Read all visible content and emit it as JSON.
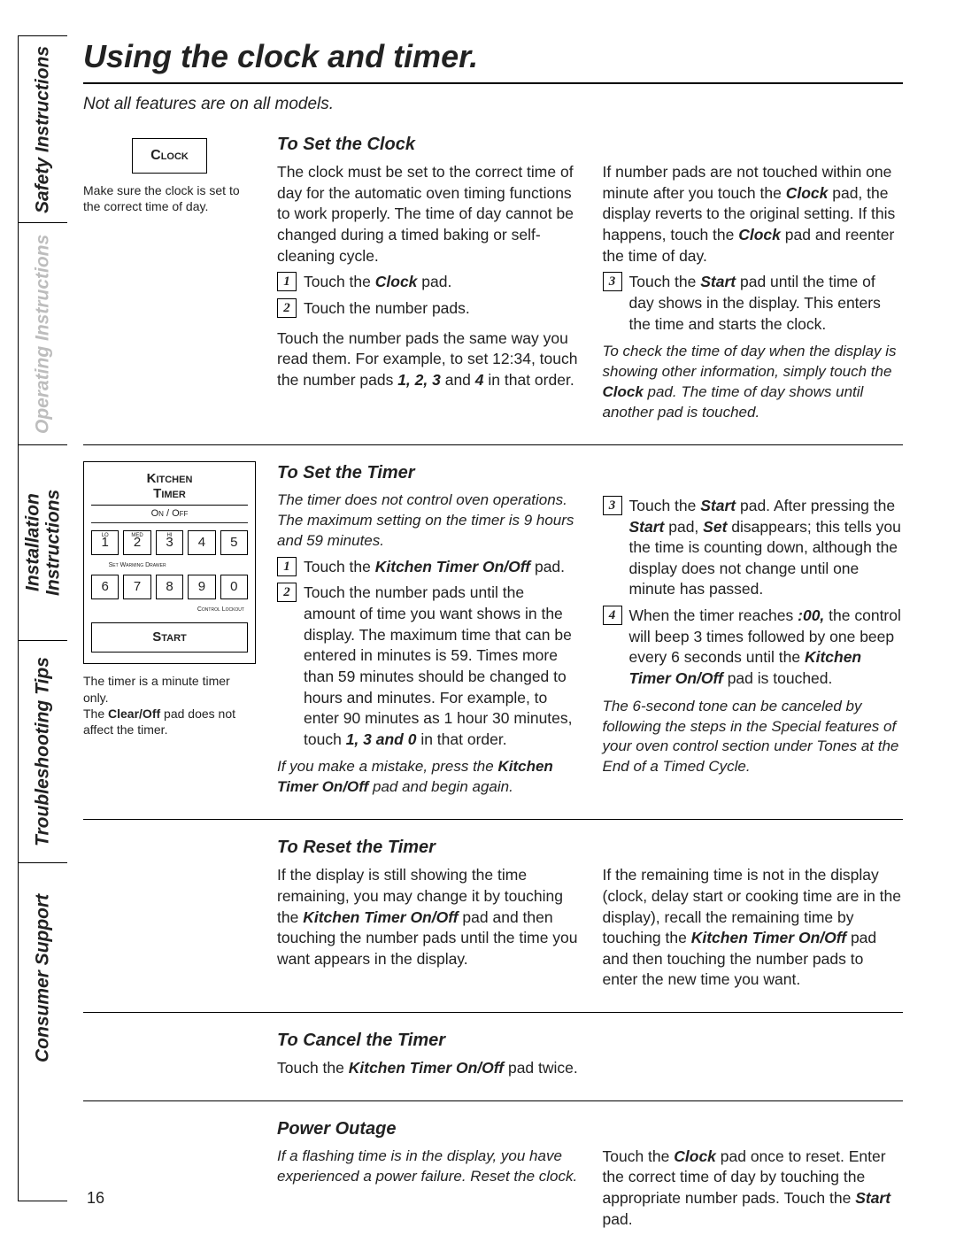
{
  "tabs": {
    "safety": "Safety Instructions",
    "operating": "Operating Instructions",
    "install_line1": "Installation",
    "install_line2": "Instructions",
    "trouble": "Troubleshooting Tips",
    "consumer": "Consumer Support"
  },
  "title": "Using the clock and timer.",
  "subtitle": "Not all features are on all models.",
  "page_number": "16",
  "clock": {
    "btn": "Clock",
    "caption": "Make sure the clock is set to the correct time of day.",
    "heading": "To Set the Clock",
    "intro": "The clock must be set to the correct time of day for the automatic oven timing functions to work properly. The time of day cannot be changed during a timed baking or self-cleaning cycle.",
    "step1": "Touch the <b><i>Clock</i></b> pad.",
    "step2": "Touch the number pads.",
    "para2": "Touch the number pads the same way you read them. For example, to set 12:34, touch the number pads <b><i>1, 2, 3</i></b> and <b><i>4</i></b> in that order.",
    "right_intro": "If number pads are not touched within one minute after you touch the <b><i>Clock</i></b> pad, the display reverts to the original setting. If this happens, touch the <b><i>Clock</i></b> pad and reenter the time of day.",
    "step3": "Touch the <b><i>Start</i></b> pad until the time of day shows in the display. This enters the time and starts the clock.",
    "right_note": "To check the time of day when the display is showing other information, simply touch the <b><i>Clock</i></b> pad. The time of day shows until another pad is touched."
  },
  "keypad": {
    "title": "Kitchen<br>Timer",
    "sub": "On / Off",
    "keys_row1": [
      "1",
      "2",
      "3",
      "4",
      "5"
    ],
    "keys_row1_sup": [
      "LO",
      "MED",
      "HI",
      "",
      ""
    ],
    "keys_row2": [
      "6",
      "7",
      "8",
      "9",
      "0"
    ],
    "foot1": "Set Warming Drawer",
    "foot2": "Control Lockout",
    "start": "Start",
    "caption": "The timer is a minute timer only.<br>The <b>Clear/Off</b> pad does not affect the timer."
  },
  "timer": {
    "heading": "To Set the Timer",
    "intro": "The timer does not control oven operations. The maximum setting on the timer is 9 hours and 59 minutes.",
    "step1": "Touch the <b><i>Kitchen Timer On/Off</i></b> pad.",
    "step2": "Touch the number pads until the amount of time you want shows in the display. The maximum time that can be entered in minutes is 59. Times more than 59 minutes should be changed to hours and minutes. For example, to enter 90 minutes as 1 hour 30 minutes, touch <b><i>1, 3 and 0</i></b> in that order.",
    "mistake": "If you make a mistake, press the <b><i>Kitchen Timer On/Off</i></b> pad and begin again.",
    "step3": "Touch the <b><i>Start</i></b> pad. After pressing the <b><i>Start</i></b> pad, <b><i>Set</i></b> disappears; this tells you the time is counting down, although the display does not change until one minute has passed.",
    "step4": "When the timer reaches <b><i>:00,</i></b> the control will beep 3 times followed by one beep every 6 seconds until the <b><i>Kitchen Timer On/Off</i></b> pad is touched.",
    "right_note": "The 6-second tone can be canceled by following the steps in the Special features of your oven control section under Tones at the End of a Timed Cycle."
  },
  "reset": {
    "heading": "To Reset the Timer",
    "left": "If the display is still showing the time remaining, you may change it by touching the <b><i>Kitchen Timer On/Off</i></b> pad and then touching the number pads until the time you want appears in the display.",
    "right": "If the remaining time is not in the display (clock, delay start or cooking time are in the display), recall the remaining time by touching the <b><i>Kitchen Timer On/Off</i></b> pad and then touching the number pads to enter the new time you want."
  },
  "cancel": {
    "heading": "To Cancel the Timer",
    "text": "Touch the <b><i>Kitchen Timer On/Off</i></b> pad twice."
  },
  "outage": {
    "heading": "Power Outage",
    "left": "If a flashing time is in the display, you have experienced a power failure. Reset the clock.",
    "right": "Touch the <b><i>Clock</i></b> pad once to reset. Enter the correct time of day by touching the appropriate number pads. Touch the <b><i>Start</i></b> pad."
  }
}
